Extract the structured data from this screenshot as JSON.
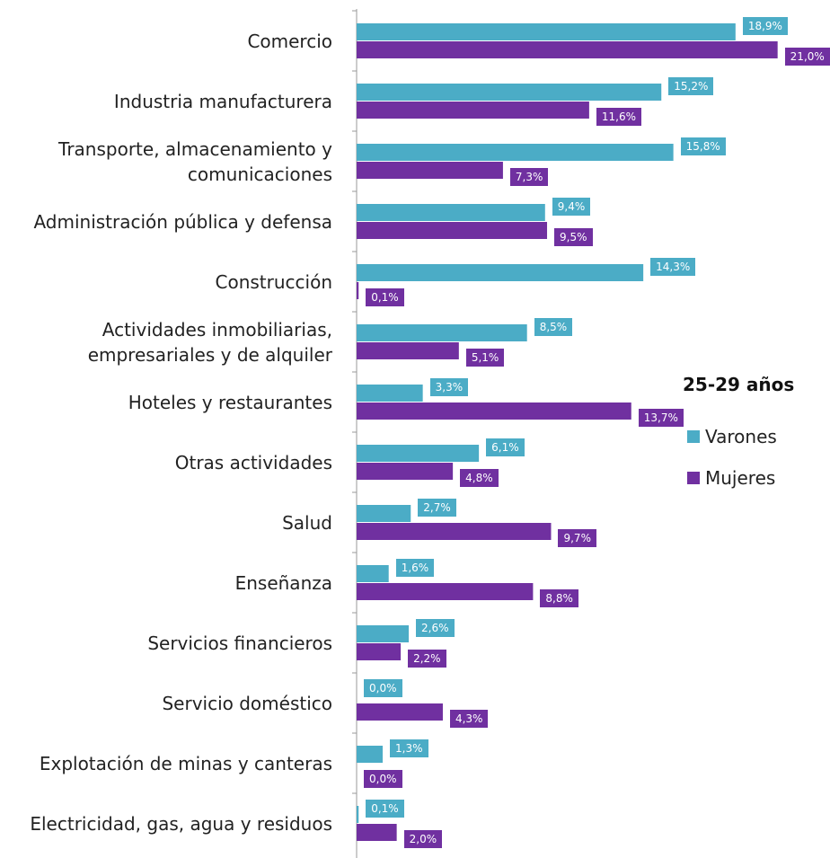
{
  "chart_data": {
    "type": "bar",
    "orientation": "horizontal",
    "legend_title": "25-29 años",
    "categories": [
      "Comercio",
      "Industria manufacturera",
      "Transporte, almacenamiento y\ncomunicaciones",
      "Administración pública y defensa",
      "Construcción",
      "Actividades inmobiliarias,\nempresariales y de alquiler",
      "Hoteles y restaurantes",
      "Otras actividades",
      "Salud",
      "Enseñanza",
      "Servicios financieros",
      "Servicio doméstico",
      "Explotación de minas y canteras",
      "Electricidad, gas, agua y residuos"
    ],
    "series": [
      {
        "name": "Varones",
        "color": "#4bacc6",
        "values": [
          18.9,
          15.2,
          15.8,
          9.4,
          14.3,
          8.5,
          3.3,
          6.1,
          2.7,
          1.6,
          2.6,
          0.0,
          1.3,
          0.1
        ],
        "value_labels": [
          "18,9%",
          "15,2%",
          "15,8%",
          "9,4%",
          "14,3%",
          "8,5%",
          "3,3%",
          "6,1%",
          "2,7%",
          "1,6%",
          "2,6%",
          "0,0%",
          "1,3%",
          "0,1%"
        ]
      },
      {
        "name": "Mujeres",
        "color": "#7030a0",
        "values": [
          21.0,
          11.6,
          7.3,
          9.5,
          0.1,
          5.1,
          13.7,
          4.8,
          9.7,
          8.8,
          2.2,
          4.3,
          0.0,
          2.0
        ],
        "value_labels": [
          "21,0%",
          "11,6%",
          "7,3%",
          "9,5%",
          "0,1%",
          "5,1%",
          "13,7%",
          "4,8%",
          "9,7%",
          "8,8%",
          "2,2%",
          "4,3%",
          "0,0%",
          "2,0%"
        ]
      }
    ],
    "xlim": [
      0,
      22
    ]
  }
}
